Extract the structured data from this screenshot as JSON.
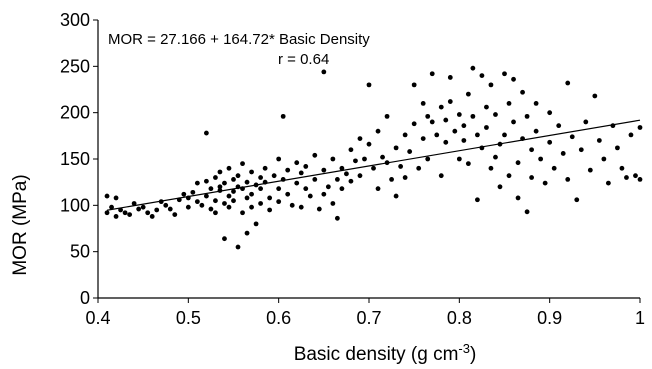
{
  "chart_data": {
    "type": "scatter",
    "xlabel": "Basic density (g cm",
    "xlabel_sup": "-3",
    "xlabel_end": ")",
    "ylabel": "MOR (MPa)",
    "xlim": [
      0.4,
      1.0
    ],
    "ylim": [
      0,
      300
    ],
    "x_ticks": [
      "0.4",
      "0.5",
      "0.6",
      "0.7",
      "0.8",
      "0.9",
      "1"
    ],
    "y_ticks": [
      "0",
      "50",
      "100",
      "150",
      "200",
      "250",
      "300"
    ],
    "grid": false,
    "annotations": {
      "equation": "MOR = 27.166  + 164.72*  Basic Density",
      "r": "r = 0.64"
    },
    "trendline": {
      "intercept": 27.166,
      "slope": 164.72,
      "x_range": [
        0.41,
        1.0
      ]
    },
    "points": [
      [
        0.41,
        110
      ],
      [
        0.41,
        92
      ],
      [
        0.415,
        98
      ],
      [
        0.42,
        108
      ],
      [
        0.42,
        88
      ],
      [
        0.425,
        95
      ],
      [
        0.43,
        92
      ],
      [
        0.435,
        90
      ],
      [
        0.44,
        102
      ],
      [
        0.445,
        96
      ],
      [
        0.45,
        98
      ],
      [
        0.455,
        92
      ],
      [
        0.46,
        88
      ],
      [
        0.465,
        95
      ],
      [
        0.47,
        104
      ],
      [
        0.475,
        100
      ],
      [
        0.48,
        96
      ],
      [
        0.485,
        90
      ],
      [
        0.49,
        106
      ],
      [
        0.495,
        112
      ],
      [
        0.5,
        98
      ],
      [
        0.5,
        108
      ],
      [
        0.505,
        114
      ],
      [
        0.51,
        104
      ],
      [
        0.51,
        124
      ],
      [
        0.515,
        100
      ],
      [
        0.52,
        110
      ],
      [
        0.52,
        126
      ],
      [
        0.52,
        178
      ],
      [
        0.525,
        118
      ],
      [
        0.525,
        96
      ],
      [
        0.53,
        130
      ],
      [
        0.53,
        105
      ],
      [
        0.53,
        92
      ],
      [
        0.535,
        116
      ],
      [
        0.535,
        136
      ],
      [
        0.535,
        120
      ],
      [
        0.54,
        64
      ],
      [
        0.54,
        102
      ],
      [
        0.54,
        124
      ],
      [
        0.545,
        110
      ],
      [
        0.545,
        140
      ],
      [
        0.545,
        98
      ],
      [
        0.55,
        128
      ],
      [
        0.55,
        115
      ],
      [
        0.55,
        105
      ],
      [
        0.555,
        55
      ],
      [
        0.555,
        132
      ],
      [
        0.555,
        120
      ],
      [
        0.56,
        118
      ],
      [
        0.56,
        145
      ],
      [
        0.56,
        92
      ],
      [
        0.565,
        125
      ],
      [
        0.565,
        108
      ],
      [
        0.565,
        70
      ],
      [
        0.57,
        136
      ],
      [
        0.57,
        112
      ],
      [
        0.57,
        98
      ],
      [
        0.575,
        122
      ],
      [
        0.575,
        80
      ],
      [
        0.58,
        130
      ],
      [
        0.58,
        118
      ],
      [
        0.58,
        102
      ],
      [
        0.585,
        140
      ],
      [
        0.585,
        125
      ],
      [
        0.59,
        108
      ],
      [
        0.59,
        95
      ],
      [
        0.595,
        132
      ],
      [
        0.6,
        118
      ],
      [
        0.6,
        150
      ],
      [
        0.6,
        104
      ],
      [
        0.605,
        196
      ],
      [
        0.605,
        128
      ],
      [
        0.61,
        138
      ],
      [
        0.61,
        112
      ],
      [
        0.615,
        100
      ],
      [
        0.62,
        146
      ],
      [
        0.62,
        124
      ],
      [
        0.625,
        135
      ],
      [
        0.625,
        98
      ],
      [
        0.63,
        142
      ],
      [
        0.63,
        118
      ],
      [
        0.635,
        110
      ],
      [
        0.64,
        154
      ],
      [
        0.64,
        128
      ],
      [
        0.645,
        96
      ],
      [
        0.65,
        244
      ],
      [
        0.65,
        138
      ],
      [
        0.65,
        112
      ],
      [
        0.655,
        120
      ],
      [
        0.66,
        150
      ],
      [
        0.66,
        102
      ],
      [
        0.665,
        128
      ],
      [
        0.665,
        86
      ],
      [
        0.67,
        140
      ],
      [
        0.67,
        118
      ],
      [
        0.675,
        134
      ],
      [
        0.68,
        160
      ],
      [
        0.68,
        126
      ],
      [
        0.685,
        148
      ],
      [
        0.69,
        172
      ],
      [
        0.69,
        132
      ],
      [
        0.695,
        150
      ],
      [
        0.7,
        230
      ],
      [
        0.7,
        166
      ],
      [
        0.705,
        140
      ],
      [
        0.71,
        180
      ],
      [
        0.71,
        118
      ],
      [
        0.715,
        152
      ],
      [
        0.72,
        196
      ],
      [
        0.72,
        146
      ],
      [
        0.725,
        128
      ],
      [
        0.73,
        162
      ],
      [
        0.73,
        110
      ],
      [
        0.735,
        142
      ],
      [
        0.74,
        176
      ],
      [
        0.74,
        130
      ],
      [
        0.745,
        158
      ],
      [
        0.75,
        230
      ],
      [
        0.75,
        188
      ],
      [
        0.755,
        140
      ],
      [
        0.76,
        210
      ],
      [
        0.76,
        172
      ],
      [
        0.765,
        196
      ],
      [
        0.765,
        150
      ],
      [
        0.77,
        242
      ],
      [
        0.77,
        190
      ],
      [
        0.775,
        176
      ],
      [
        0.78,
        206
      ],
      [
        0.78,
        132
      ],
      [
        0.785,
        192
      ],
      [
        0.785,
        168
      ],
      [
        0.79,
        238
      ],
      [
        0.79,
        212
      ],
      [
        0.795,
        180
      ],
      [
        0.8,
        198
      ],
      [
        0.8,
        150
      ],
      [
        0.805,
        186
      ],
      [
        0.805,
        170
      ],
      [
        0.81,
        220
      ],
      [
        0.81,
        145
      ],
      [
        0.815,
        248
      ],
      [
        0.815,
        196
      ],
      [
        0.82,
        176
      ],
      [
        0.82,
        106
      ],
      [
        0.825,
        240
      ],
      [
        0.825,
        162
      ],
      [
        0.83,
        206
      ],
      [
        0.83,
        184
      ],
      [
        0.835,
        230
      ],
      [
        0.835,
        140
      ],
      [
        0.84,
        198
      ],
      [
        0.84,
        152
      ],
      [
        0.845,
        166
      ],
      [
        0.845,
        120
      ],
      [
        0.85,
        242
      ],
      [
        0.85,
        176
      ],
      [
        0.855,
        210
      ],
      [
        0.855,
        132
      ],
      [
        0.86,
        236
      ],
      [
        0.86,
        190
      ],
      [
        0.865,
        146
      ],
      [
        0.865,
        108
      ],
      [
        0.87,
        222
      ],
      [
        0.87,
        172
      ],
      [
        0.875,
        196
      ],
      [
        0.875,
        93
      ],
      [
        0.88,
        160
      ],
      [
        0.88,
        130
      ],
      [
        0.885,
        210
      ],
      [
        0.885,
        180
      ],
      [
        0.89,
        150
      ],
      [
        0.895,
        124
      ],
      [
        0.9,
        200
      ],
      [
        0.9,
        168
      ],
      [
        0.905,
        140
      ],
      [
        0.91,
        186
      ],
      [
        0.915,
        156
      ],
      [
        0.92,
        232
      ],
      [
        0.92,
        128
      ],
      [
        0.925,
        174
      ],
      [
        0.93,
        106
      ],
      [
        0.935,
        160
      ],
      [
        0.94,
        190
      ],
      [
        0.945,
        138
      ],
      [
        0.95,
        218
      ],
      [
        0.955,
        170
      ],
      [
        0.96,
        150
      ],
      [
        0.965,
        124
      ],
      [
        0.97,
        186
      ],
      [
        0.975,
        162
      ],
      [
        0.98,
        140
      ],
      [
        0.985,
        130
      ],
      [
        0.99,
        176
      ],
      [
        0.995,
        132
      ],
      [
        1.0,
        184
      ],
      [
        1.0,
        128
      ]
    ]
  }
}
